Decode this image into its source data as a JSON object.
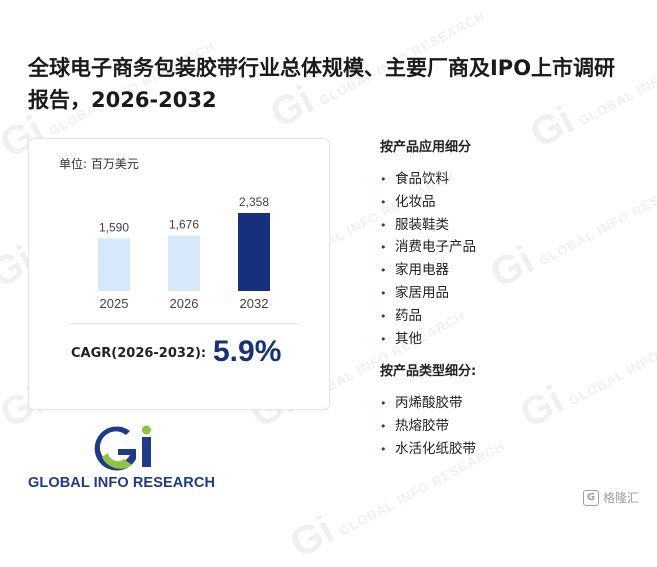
{
  "title": "全球电子商务包装胶带行业总体规模、主要厂商及IPO上市调研报告，2026-2032",
  "unit_label": "单位: 百万美元",
  "chart_data": {
    "type": "bar",
    "categories": [
      "2025",
      "2026",
      "2032"
    ],
    "values": [
      1590,
      1676,
      2358
    ],
    "value_labels": [
      "1,590",
      "1,676",
      "2,358"
    ],
    "colors": [
      "#d6e8fb",
      "#d6e8fb",
      "#16307e"
    ],
    "ylim": [
      0,
      2358
    ]
  },
  "cagr": {
    "label": "CAGR(2026-2032):",
    "value": "5.9%"
  },
  "application": {
    "title": "按产品应用细分",
    "items": [
      "食品饮料",
      "化妆品",
      "服装鞋类",
      "消费电子产品",
      "家用电器",
      "家居用品",
      "药品",
      "其他"
    ]
  },
  "type_segment": {
    "title": "按产品类型细分:",
    "items": [
      "丙烯酸胶带",
      "热熔胶带",
      "水活化纸胶带"
    ]
  },
  "logo": {
    "mark": "Gi",
    "text": "GLOBAL INFO RESEARCH"
  },
  "badge": {
    "text": "格隆汇"
  },
  "watermark": {
    "mark": "Gi",
    "text": "GLOBAL INFO RESEARCH"
  }
}
